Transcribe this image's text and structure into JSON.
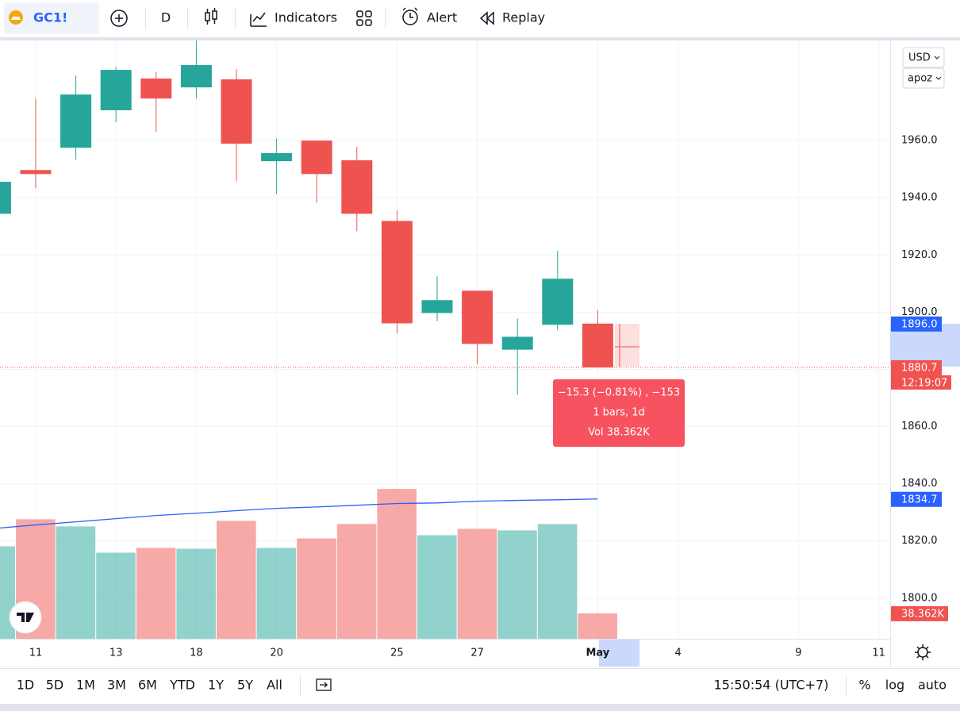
{
  "toolbar": {
    "symbol": "GC1!",
    "interval": "D",
    "indicators": "Indicators",
    "alert": "Alert",
    "replay": "Replay"
  },
  "chart_data": {
    "type": "candlestick",
    "categories": [
      null,
      "11",
      null,
      "13",
      null,
      "18",
      null,
      "20",
      null,
      null,
      "25",
      null,
      "27",
      null,
      null,
      "May",
      null,
      "4",
      null,
      null,
      "9",
      null,
      "11"
    ],
    "open": [
      1934.4,
      1949.7,
      1957.5,
      1970.6,
      1981.7,
      1978.6,
      1981.4,
      1952.8,
      1960.0,
      1953.1,
      1931.9,
      1899.7,
      1907.5,
      1886.9,
      1895.6,
      1896.0,
      null,
      null,
      null,
      null,
      null,
      null,
      null
    ],
    "high": [
      1946.0,
      1974.7,
      1982.8,
      1985.8,
      1983.9,
      1995.0,
      1985.0,
      1960.8,
      1960.0,
      1957.8,
      1935.6,
      1912.5,
      1907.5,
      1897.8,
      1921.4,
      1900.8,
      null,
      null,
      null,
      null,
      null,
      null,
      null
    ],
    "low": [
      1934.0,
      1943.3,
      1953.3,
      1966.4,
      1963.1,
      1974.7,
      1945.8,
      1941.4,
      1938.3,
      1928.3,
      1892.5,
      1896.9,
      1881.7,
      1871.1,
      1893.6,
      1880.7,
      null,
      null,
      null,
      null,
      null,
      null,
      null
    ],
    "close": [
      1945.6,
      1948.3,
      1976.1,
      1984.7,
      1974.7,
      1986.4,
      1958.9,
      1955.6,
      1948.3,
      1934.4,
      1896.1,
      1904.2,
      1888.9,
      1891.4,
      1911.7,
      1880.7,
      null,
      null,
      null,
      null,
      null,
      null,
      null
    ],
    "volume": [
      139.1,
      179.8,
      169.0,
      129.5,
      136.7,
      135.5,
      177.4,
      136.7,
      151.0,
      172.6,
      225.4,
      155.8,
      165.4,
      163.0,
      172.6,
      38.362,
      null,
      null,
      null,
      null,
      null,
      null,
      null
    ],
    "up_color": "#26a69a",
    "down_color": "#ef5350",
    "ma": {
      "color": "#2962ff",
      "values": [
        1824.4,
        1825.6,
        1826.7,
        1827.8,
        1828.9,
        1829.7,
        1830.6,
        1831.4,
        1831.9,
        1832.5,
        1833.1,
        1833.3,
        1833.9,
        1834.2,
        1834.4,
        1834.7,
        null,
        null,
        null,
        null,
        null,
        null,
        null
      ]
    },
    "ylim": [
      1785.8,
      1995
    ],
    "yticks": [
      {
        "value": 1800,
        "label": "1800.0"
      },
      {
        "value": 1820,
        "label": "1820.0"
      },
      {
        "value": 1840,
        "label": "1840.0"
      },
      {
        "value": 1860,
        "label": "1860.0"
      },
      {
        "value": 1880,
        "label": "1880.0"
      },
      {
        "value": 1900,
        "label": "1900.0"
      },
      {
        "value": 1920,
        "label": "1920.0"
      },
      {
        "value": 1940,
        "label": "1940.0"
      },
      {
        "value": 1960,
        "label": "1960.0"
      }
    ],
    "volume_lim": [
      0,
      900
    ],
    "grid": true,
    "currency": "USD",
    "scale_menu": "apoz",
    "badges": [
      {
        "value": 1896.0,
        "label": "1896.0",
        "color": "#2962ff"
      },
      {
        "value": 1880.7,
        "label": "1880.7",
        "color": "#ef5350",
        "timer": "12:19:07"
      },
      {
        "value": 1834.7,
        "label": "1834.7",
        "color": "#2962ff"
      }
    ],
    "volume_badge": {
      "value": 38.362,
      "label": "38.362K",
      "color": "#ef5350"
    },
    "tooltip": [
      "−15.3 (−0.81%) , −153",
      "1 bars, 1d",
      "Vol 38.362K"
    ]
  },
  "bottom_bar": {
    "ranges": [
      "1D",
      "5D",
      "1M",
      "3M",
      "6M",
      "YTD",
      "1Y",
      "5Y",
      "All"
    ],
    "time": "15:50:54 (UTC+7)",
    "options": [
      "%",
      "log",
      "auto"
    ]
  }
}
